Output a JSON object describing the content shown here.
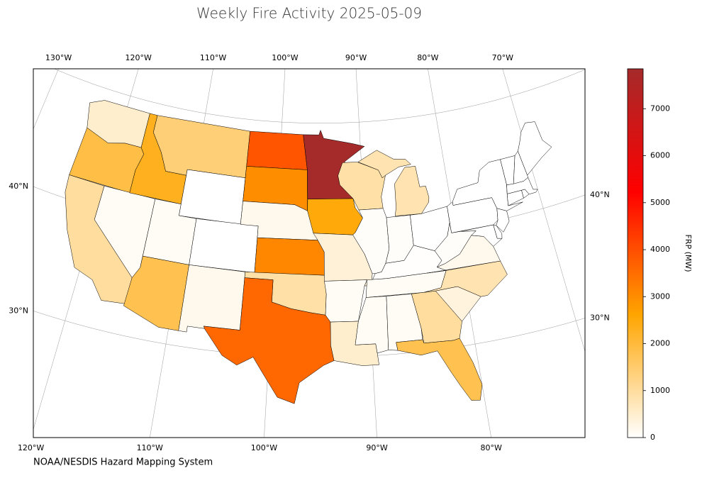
{
  "chart_data": {
    "type": "choropleth",
    "title": "Weekly Fire Activity 2025-05-09",
    "source": "NOAA/NESDIS Hazard Mapping System",
    "values": [
      500,
      1900,
      1000,
      100,
      2300,
      1400,
      0,
      100,
      1800,
      0,
      200,
      3900,
      3000,
      200,
      3100,
      900,
      3600,
      7850,
      2500,
      400,
      100,
      500,
      900,
      50,
      800,
      50,
      0,
      20,
      100,
      100,
      100,
      1000,
      1800,
      350,
      800,
      200,
      50,
      0,
      0,
      0,
      0,
      0,
      0,
      0,
      0,
      0,
      0,
      0
    ],
    "colorbar": {
      "label": "FRP (MW)",
      "lim": [
        0,
        7850
      ],
      "ticks": [
        0,
        1000,
        2000,
        3000,
        4000,
        5000,
        6000,
        7000
      ],
      "colors": [
        "#ffffff",
        "#ffa500",
        "#ff0000",
        "#a52a2a"
      ]
    },
    "xticks_top": [
      {
        "value": -130,
        "label": "130°W"
      },
      {
        "value": -120,
        "label": "120°W"
      },
      {
        "value": -110,
        "label": "110°W"
      },
      {
        "value": -100,
        "label": "100°W"
      },
      {
        "value": -90,
        "label": "90°W"
      },
      {
        "value": -80,
        "label": "80°W"
      },
      {
        "value": -70,
        "label": "70°W"
      }
    ],
    "xticks_bottom": [
      {
        "value": -120,
        "label": "120°W"
      },
      {
        "value": -110,
        "label": "110°W"
      },
      {
        "value": -100,
        "label": "100°W"
      },
      {
        "value": -90,
        "label": "90°W"
      },
      {
        "value": -80,
        "label": "80°W"
      }
    ],
    "yticks_left": [
      {
        "value": 40,
        "label": "40°N"
      },
      {
        "value": 30,
        "label": "30°N"
      }
    ],
    "yticks_right": [
      {
        "value": 40,
        "label": "40°N"
      },
      {
        "value": 30,
        "label": "30°N"
      }
    ],
    "grid": true
  }
}
